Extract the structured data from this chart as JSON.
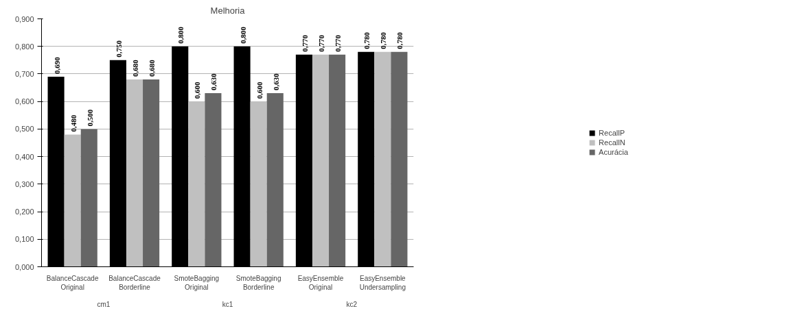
{
  "chart_data": {
    "type": "bar",
    "title": "Melhoria",
    "categories": [
      "BalanceCascade\nOriginal",
      "BalanceCascade\nBorderline",
      "SmoteBagging\nOriginal",
      "SmoteBagging\nBorderline",
      "EasyEnsemble\nOriginal",
      "EasyEnsemble\nUndersampling"
    ],
    "series": [
      {
        "name": "RecallP",
        "color": "#000000",
        "values": [
          0.69,
          0.75,
          0.8,
          0.8,
          0.77,
          0.78
        ],
        "value_labels": [
          "0,690",
          "0,750",
          "0,800",
          "0,800",
          "0,770",
          "0,780"
        ]
      },
      {
        "name": "RecallN",
        "color": "#c0c0c0",
        "values": [
          0.48,
          0.68,
          0.6,
          0.6,
          0.77,
          0.78
        ],
        "value_labels": [
          "0,480",
          "0,680",
          "0,600",
          "0,600",
          "0,770",
          "0,780"
        ]
      },
      {
        "name": "Acurácia",
        "color": "#666666",
        "values": [
          0.5,
          0.68,
          0.63,
          0.63,
          0.77,
          0.78
        ],
        "value_labels": [
          "0,500",
          "0,680",
          "0,630",
          "0,630",
          "0,770",
          "0,780"
        ]
      }
    ],
    "ylim": [
      0,
      0.9
    ],
    "yticks": [
      {
        "value": 0,
        "label": "0,000"
      },
      {
        "value": 0.1,
        "label": "0,100"
      },
      {
        "value": 0.2,
        "label": "0,200"
      },
      {
        "value": 0.3,
        "label": "0,300"
      },
      {
        "value": 0.4,
        "label": "0,400"
      },
      {
        "value": 0.5,
        "label": "0,500"
      },
      {
        "value": 0.6,
        "label": "0,600"
      },
      {
        "value": 0.7,
        "label": "0,700"
      },
      {
        "value": 0.8,
        "label": "0,800"
      },
      {
        "value": 0.9,
        "label": "0,900"
      }
    ],
    "annotations": [
      "cm1",
      "kc1",
      "kc2"
    ],
    "grid": "y",
    "legend": "right"
  }
}
